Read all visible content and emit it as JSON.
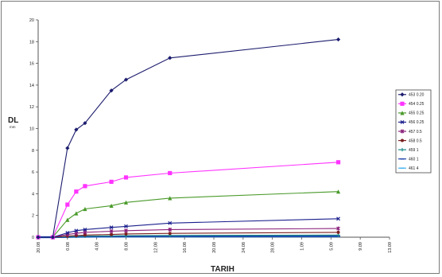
{
  "chart_data": {
    "type": "line",
    "title": "",
    "xlabel": "TARIH",
    "ylabel": "DL",
    "ylabel_sub": "mm",
    "ylim": [
      0,
      20
    ],
    "yticks": [
      "0",
      "2",
      "4",
      "6",
      "8",
      "10",
      "12",
      "14",
      "16",
      "18",
      "20"
    ],
    "xlim": [
      0,
      24
    ],
    "xticks": [
      "20.08",
      "0.08",
      "4.08",
      "8.08",
      "12.08",
      "16.08",
      "20.08",
      "24.08",
      "28.08",
      "1.09",
      "5.09",
      "9.09",
      "13.09"
    ],
    "grid": false,
    "legend_position": "right",
    "series": [
      {
        "name": "453 0.20",
        "color": "#1c1c6e",
        "marker": "diamond",
        "x": [
          0.0,
          1.0,
          2.0,
          2.6,
          3.2,
          5.0,
          6.0,
          9.0,
          20.5
        ],
        "y": [
          0,
          0,
          8.2,
          9.9,
          10.5,
          13.5,
          14.5,
          16.5,
          18.2
        ]
      },
      {
        "name": "454 0.25",
        "color": "#ff33ff",
        "marker": "square",
        "x": [
          0.0,
          1.0,
          2.0,
          2.6,
          3.2,
          5.0,
          6.0,
          9.0,
          20.5
        ],
        "y": [
          0,
          0,
          3.0,
          4.2,
          4.7,
          5.1,
          5.5,
          5.9,
          6.9
        ]
      },
      {
        "name": "455 0.25",
        "color": "#4a9a2a",
        "marker": "triangle",
        "x": [
          0.0,
          1.0,
          2.0,
          2.6,
          3.2,
          5.0,
          6.0,
          9.0,
          20.5
        ],
        "y": [
          0,
          0,
          1.6,
          2.2,
          2.6,
          2.9,
          3.2,
          3.6,
          4.2
        ]
      },
      {
        "name": "456 0.25",
        "color": "#1a1f8c",
        "marker": "x",
        "x": [
          0.0,
          1.0,
          2.0,
          2.6,
          3.2,
          5.0,
          6.0,
          9.0,
          20.5
        ],
        "y": [
          0,
          0,
          0.4,
          0.6,
          0.7,
          0.9,
          1.0,
          1.3,
          1.7
        ]
      },
      {
        "name": "457 0.5",
        "color": "#8a1f7a",
        "marker": "star",
        "x": [
          0.0,
          1.0,
          2.0,
          2.6,
          3.2,
          5.0,
          6.0,
          9.0,
          20.5
        ],
        "y": [
          0,
          0,
          0.25,
          0.35,
          0.45,
          0.55,
          0.6,
          0.7,
          0.8
        ]
      },
      {
        "name": "458 0.5",
        "color": "#7a1f1f",
        "marker": "circle",
        "x": [
          0.0,
          1.0,
          2.0,
          2.6,
          3.2,
          5.0,
          6.0,
          9.0,
          20.5
        ],
        "y": [
          0,
          0,
          0.1,
          0.15,
          0.2,
          0.25,
          0.3,
          0.35,
          0.45
        ]
      },
      {
        "name": "459 1",
        "color": "#1a8a8a",
        "marker": "plus",
        "x": [
          0.0,
          1.0,
          2.0,
          2.6,
          3.2,
          5.0,
          6.0,
          9.0,
          20.5
        ],
        "y": [
          0,
          0,
          0.05,
          0.08,
          0.1,
          0.12,
          0.14,
          0.16,
          0.2
        ]
      },
      {
        "name": "460 1",
        "color": "#1a3fa8",
        "marker": "dash",
        "x": [
          0.0,
          1.0,
          2.0,
          2.6,
          3.2,
          5.0,
          6.0,
          9.0,
          20.5
        ],
        "y": [
          0,
          0,
          0.03,
          0.05,
          0.06,
          0.07,
          0.08,
          0.09,
          0.1
        ]
      },
      {
        "name": "461 4",
        "color": "#3fb0ee",
        "marker": "dash",
        "x": [
          0.0,
          1.0,
          2.0,
          2.6,
          3.2,
          5.0,
          6.0,
          9.0,
          20.5
        ],
        "y": [
          0,
          0,
          0.02,
          0.03,
          0.04,
          0.05,
          0.05,
          0.06,
          0.07
        ]
      }
    ]
  }
}
